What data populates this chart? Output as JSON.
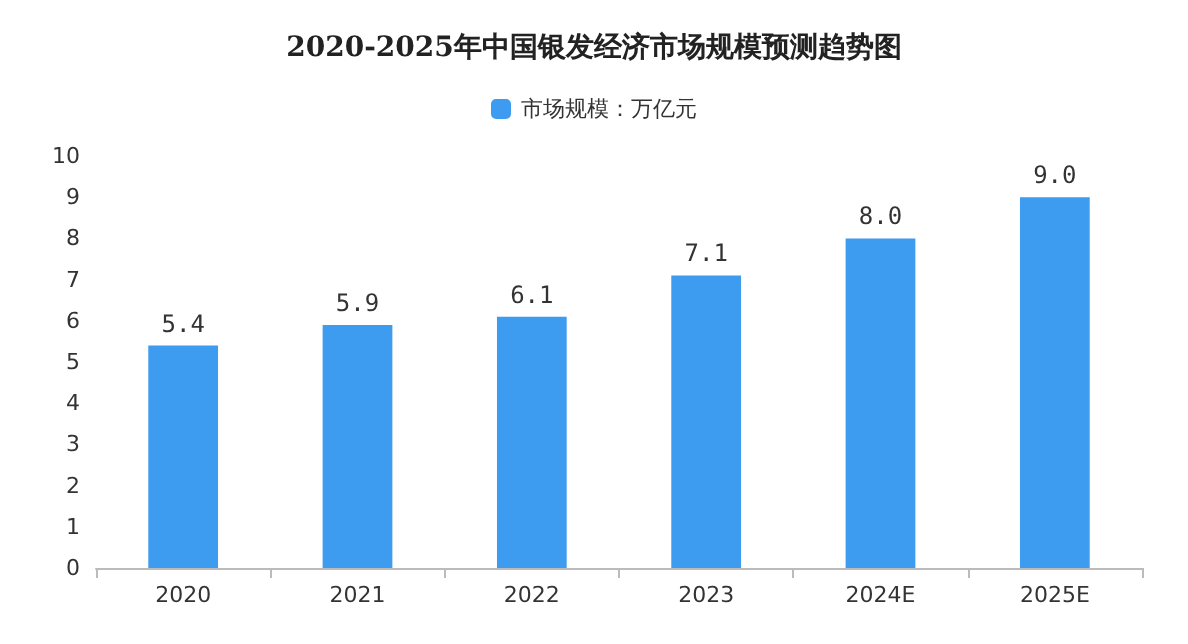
{
  "chart_data": {
    "type": "bar",
    "title": "2020-2025年中国银发经济市场规模预测趋势图",
    "categories": [
      "2020",
      "2021",
      "2022",
      "2023",
      "2024E",
      "2025E"
    ],
    "series": [
      {
        "name": "市场规模：万亿元",
        "color": "#3d9bf0",
        "values": [
          5.4,
          5.9,
          6.1,
          7.1,
          8.0,
          9.0
        ],
        "value_labels": [
          "5.4",
          "5.9",
          "6.1",
          "7.1",
          "8.0",
          "9.0"
        ]
      }
    ],
    "ylim": [
      0,
      10
    ],
    "yticks": [
      0,
      1,
      2,
      3,
      4,
      5,
      6,
      7,
      8,
      9,
      10
    ],
    "legend": "top",
    "grid": false
  }
}
